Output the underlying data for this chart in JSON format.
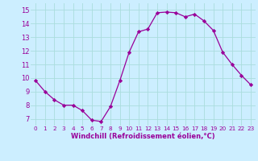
{
  "x": [
    0,
    1,
    2,
    3,
    4,
    5,
    6,
    7,
    8,
    9,
    10,
    11,
    12,
    13,
    14,
    15,
    16,
    17,
    18,
    19,
    20,
    21,
    22,
    23
  ],
  "y": [
    9.8,
    9.0,
    8.4,
    8.0,
    8.0,
    7.6,
    6.9,
    6.8,
    7.9,
    9.8,
    11.9,
    13.4,
    13.6,
    14.8,
    14.85,
    14.8,
    14.5,
    14.7,
    14.2,
    13.5,
    11.9,
    11.0,
    10.2,
    9.5
  ],
  "line_color": "#990099",
  "marker": "D",
  "marker_size": 2.2,
  "bg_color": "#cceeff",
  "grid_color": "#aadddd",
  "xlabel": "Windchill (Refroidissement éolien,°C)",
  "xlabel_color": "#990099",
  "tick_color": "#990099",
  "ylim": [
    6.5,
    15.5
  ],
  "xlim": [
    -0.5,
    23.5
  ],
  "yticks": [
    7,
    8,
    9,
    10,
    11,
    12,
    13,
    14,
    15
  ],
  "xticks": [
    0,
    1,
    2,
    3,
    4,
    5,
    6,
    7,
    8,
    9,
    10,
    11,
    12,
    13,
    14,
    15,
    16,
    17,
    18,
    19,
    20,
    21,
    22,
    23
  ],
  "xlabel_fontsize": 6.0,
  "xtick_fontsize": 5.2,
  "ytick_fontsize": 6.0
}
